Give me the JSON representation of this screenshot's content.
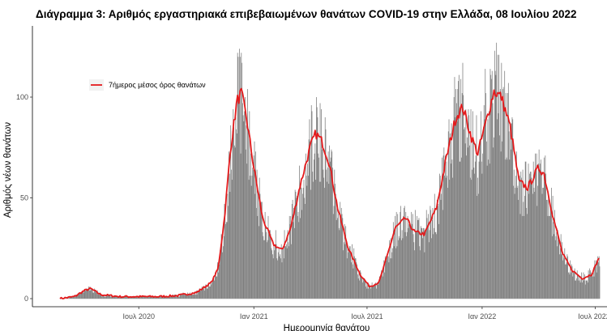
{
  "chart_data": {
    "type": "bar",
    "title": "Διάγραμμα 3: Αριθμός εργαστηριακά επιβεβαιωμένων θανάτων COVID-19 στην Ελλάδα, 08 Ιουλίου 2022",
    "xlabel": "Ημερομηνία θανάτου",
    "ylabel": "Αριθμός νέων θανάτων",
    "x_range": [
      "2020-02-26",
      "2022-07-08"
    ],
    "ylim": [
      -3,
      130
    ],
    "y_ticks": [
      0,
      50,
      100
    ],
    "x_ticks": [
      {
        "date": "2020-07-01",
        "label": "Ιουλ 2020"
      },
      {
        "date": "2021-01-01",
        "label": "Ιαν 2021"
      },
      {
        "date": "2021-07-01",
        "label": "Ιουλ 2021"
      },
      {
        "date": "2022-01-01",
        "label": "Ιαν 2022"
      },
      {
        "date": "2022-07-01",
        "label": "Ιουλ 2022"
      }
    ],
    "grid": false,
    "legend": {
      "position": "top-left",
      "entries": [
        "7ήμερος μέσος όρος θανάτων"
      ]
    },
    "series": [
      {
        "name": "7ήμερος μέσος όρος θανάτων",
        "type": "line",
        "color": "#e41a1c",
        "points": [
          [
            "2020-02-26",
            0
          ],
          [
            "2020-03-20",
            1
          ],
          [
            "2020-04-05",
            4
          ],
          [
            "2020-04-15",
            5
          ],
          [
            "2020-05-01",
            2
          ],
          [
            "2020-06-01",
            1
          ],
          [
            "2020-08-01",
            1
          ],
          [
            "2020-09-01",
            1.5
          ],
          [
            "2020-10-01",
            3
          ],
          [
            "2020-10-25",
            8
          ],
          [
            "2020-11-05",
            15
          ],
          [
            "2020-11-15",
            40
          ],
          [
            "2020-11-25",
            75
          ],
          [
            "2020-12-05",
            98
          ],
          [
            "2020-12-12",
            102
          ],
          [
            "2020-12-20",
            90
          ],
          [
            "2021-01-01",
            65
          ],
          [
            "2021-01-15",
            40
          ],
          [
            "2021-02-01",
            27
          ],
          [
            "2021-02-15",
            24
          ],
          [
            "2021-03-01",
            35
          ],
          [
            "2021-03-15",
            55
          ],
          [
            "2021-04-01",
            75
          ],
          [
            "2021-04-10",
            82
          ],
          [
            "2021-04-20",
            78
          ],
          [
            "2021-05-01",
            68
          ],
          [
            "2021-05-15",
            45
          ],
          [
            "2021-06-01",
            25
          ],
          [
            "2021-06-20",
            12
          ],
          [
            "2021-07-05",
            6
          ],
          [
            "2021-07-20",
            8
          ],
          [
            "2021-08-01",
            20
          ],
          [
            "2021-08-15",
            35
          ],
          [
            "2021-09-01",
            40
          ],
          [
            "2021-09-15",
            33
          ],
          [
            "2021-10-01",
            32
          ],
          [
            "2021-10-20",
            45
          ],
          [
            "2021-11-05",
            70
          ],
          [
            "2021-11-20",
            90
          ],
          [
            "2021-12-01",
            95
          ],
          [
            "2021-12-15",
            80
          ],
          [
            "2021-12-25",
            72
          ],
          [
            "2022-01-05",
            85
          ],
          [
            "2022-01-20",
            103
          ],
          [
            "2022-02-01",
            100
          ],
          [
            "2022-02-15",
            85
          ],
          [
            "2022-03-01",
            58
          ],
          [
            "2022-03-15",
            55
          ],
          [
            "2022-04-01",
            65
          ],
          [
            "2022-04-10",
            62
          ],
          [
            "2022-04-25",
            40
          ],
          [
            "2022-05-10",
            22
          ],
          [
            "2022-05-25",
            14
          ],
          [
            "2022-06-10",
            10
          ],
          [
            "2022-06-25",
            12
          ],
          [
            "2022-07-08",
            21
          ]
        ]
      },
      {
        "name": "",
        "type": "bar",
        "color": "#7f7f7f",
        "values": "daily counts approximated around the 7-day mean"
      }
    ]
  }
}
